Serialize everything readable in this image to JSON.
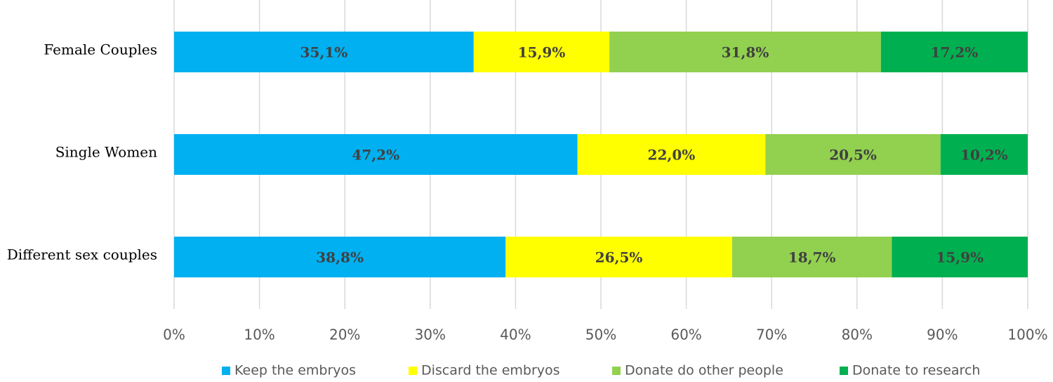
{
  "chart_data": {
    "type": "bar",
    "orientation": "horizontal",
    "stacked": "percent",
    "categories": [
      "Female Couples",
      "Single Women",
      "Different sex couples"
    ],
    "series": [
      {
        "name": "Keep the embryos",
        "color": "#00b0f0",
        "values": [
          35.1,
          47.2,
          38.8
        ],
        "labels": [
          "35,1%",
          "47,2%",
          "38,8%"
        ]
      },
      {
        "name": "Discard the embryos",
        "color": "#ffff00",
        "values": [
          15.9,
          22.0,
          26.5
        ],
        "labels": [
          "15,9%",
          "22,0%",
          "26,5%"
        ]
      },
      {
        "name": "Donate do other people",
        "color": "#92d050",
        "values": [
          31.8,
          20.5,
          18.7
        ],
        "labels": [
          "31,8%",
          "20,5%",
          "18,7%"
        ]
      },
      {
        "name": "Donate to research",
        "color": "#00b050",
        "values": [
          17.2,
          10.2,
          15.9
        ],
        "labels": [
          "17,2%",
          "10,2%",
          "15,9%"
        ]
      }
    ],
    "xlim": [
      0,
      100
    ],
    "xticks": [
      "0%",
      "10%",
      "20%",
      "30%",
      "40%",
      "50%",
      "60%",
      "70%",
      "80%",
      "90%",
      "100%"
    ],
    "grid": "vertical",
    "legend": "bottom",
    "title": "",
    "xlabel": "",
    "ylabel": ""
  }
}
